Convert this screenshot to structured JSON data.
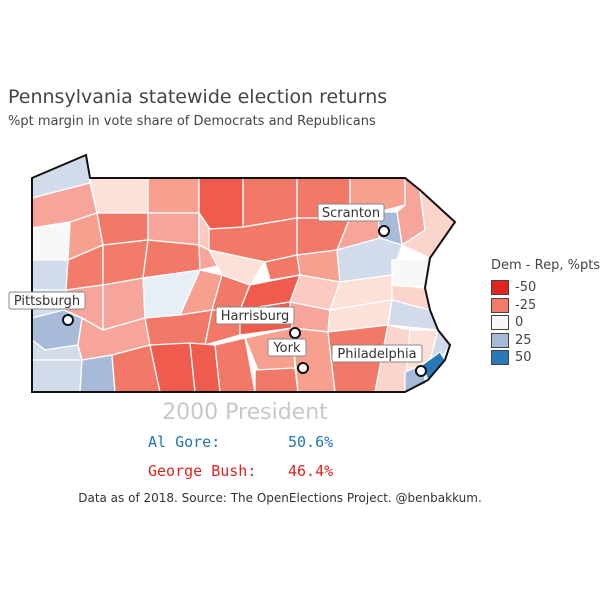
{
  "title": "Pennsylvania statewide election returns",
  "subtitle": "%pt margin in vote share of Democrats and Republicans",
  "legend": {
    "title": "Dem - Rep, %pts",
    "items": [
      {
        "label": "-50",
        "color": "#e0241f"
      },
      {
        "label": "-25",
        "color": "#f37b6a"
      },
      {
        "label": "0",
        "color": "#f8f8f8"
      },
      {
        "label": "25",
        "color": "#a7bbd9"
      },
      {
        "label": "50",
        "color": "#2a78b8"
      }
    ]
  },
  "cities": [
    "Scranton",
    "Pittsburgh",
    "Harrisburg",
    "York",
    "Philadelphia"
  ],
  "election": "2000 President",
  "candidates": [
    {
      "name": "Al Gore:",
      "share": "50.6%",
      "color": "#1f74b5"
    },
    {
      "name": "George Bush:",
      "share": "46.4%",
      "color": "#e0241f"
    }
  ],
  "source": "Data as of 2018. Source: The OpenElections Project. @benbakkum."
}
